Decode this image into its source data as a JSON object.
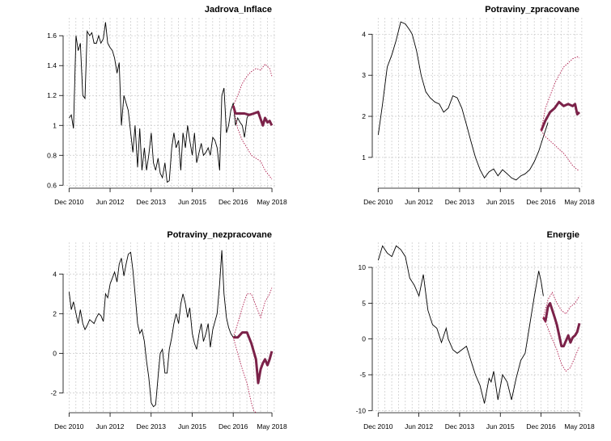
{
  "chart_data": [
    {
      "type": "line",
      "title": "Jadrova_Inflace",
      "x_tick_labels": [
        "Dec 2010",
        "Jun 2012",
        "Dec 2013",
        "Jun 2015",
        "Dec 2016",
        "May 2018"
      ],
      "x_tick_times": [
        2010.917,
        2012.417,
        2013.917,
        2015.417,
        2016.917,
        2018.333
      ],
      "xlim": [
        2010.7,
        2018.45
      ],
      "ylim": [
        0.58,
        1.72
      ],
      "y_ticks": [
        0.6,
        0.8,
        1.0,
        1.2,
        1.4,
        1.6
      ],
      "series": [
        {
          "name": "history",
          "x": [
            2010.92,
            2011.0,
            2011.08,
            2011.17,
            2011.25,
            2011.33,
            2011.42,
            2011.5,
            2011.58,
            2011.67,
            2011.75,
            2011.83,
            2011.92,
            2012.0,
            2012.08,
            2012.17,
            2012.25,
            2012.33,
            2012.42,
            2012.5,
            2012.58,
            2012.67,
            2012.75,
            2012.83,
            2012.92,
            2013.0,
            2013.08,
            2013.17,
            2013.25,
            2013.33,
            2013.42,
            2013.5,
            2013.58,
            2013.67,
            2013.75,
            2013.83,
            2013.92,
            2014.0,
            2014.08,
            2014.17,
            2014.25,
            2014.33,
            2014.42,
            2014.5,
            2014.58,
            2014.67,
            2014.75,
            2014.83,
            2014.92,
            2015.0,
            2015.08,
            2015.17,
            2015.25,
            2015.33,
            2015.42,
            2015.5,
            2015.58,
            2015.67,
            2015.75,
            2015.83,
            2015.92,
            2016.0,
            2016.08,
            2016.17,
            2016.25,
            2016.33,
            2016.42,
            2016.5,
            2016.58,
            2016.67,
            2016.75,
            2016.83,
            2016.92,
            2017.0,
            2017.08,
            2017.17,
            2017.25,
            2017.33,
            2017.42,
            2017.5
          ],
          "y": [
            1.05,
            1.07,
            0.98,
            1.6,
            1.5,
            1.55,
            1.2,
            1.18,
            1.63,
            1.6,
            1.62,
            1.55,
            1.55,
            1.6,
            1.55,
            1.58,
            1.69,
            1.55,
            1.52,
            1.5,
            1.45,
            1.35,
            1.42,
            1.0,
            1.2,
            1.15,
            1.1,
            0.95,
            0.82,
            1.0,
            0.72,
            0.98,
            0.7,
            0.85,
            0.7,
            0.8,
            0.95,
            0.75,
            0.7,
            0.78,
            0.68,
            0.65,
            0.75,
            0.62,
            0.63,
            0.85,
            0.95,
            0.85,
            0.9,
            0.7,
            0.95,
            0.85,
            1.0,
            0.9,
            0.8,
            0.95,
            0.75,
            0.82,
            0.88,
            0.8,
            0.82,
            0.85,
            0.8,
            0.92,
            0.9,
            0.85,
            0.7,
            1.2,
            1.25,
            0.95,
            1.0,
            1.1,
            1.15,
            1.0,
            1.05,
            1.02,
            1.0,
            0.92,
            1.05,
            1.08
          ],
          "style": "history"
        },
        {
          "name": "forecast",
          "x": [
            2016.92,
            2017.0,
            2017.17,
            2017.33,
            2017.5,
            2017.67,
            2017.83,
            2018.0,
            2018.08,
            2018.17,
            2018.25,
            2018.33
          ],
          "y": [
            1.13,
            1.08,
            1.08,
            1.08,
            1.07,
            1.08,
            1.09,
            1.0,
            1.05,
            1.02,
            1.03,
            1.0
          ],
          "style": "forecast"
        },
        {
          "name": "upper",
          "x": [
            2016.92,
            2017.08,
            2017.25,
            2017.42,
            2017.58,
            2017.75,
            2017.92,
            2018.08,
            2018.25,
            2018.33
          ],
          "y": [
            1.13,
            1.2,
            1.28,
            1.33,
            1.36,
            1.38,
            1.37,
            1.41,
            1.38,
            1.33
          ],
          "style": "band"
        },
        {
          "name": "lower",
          "x": [
            2016.92,
            2017.08,
            2017.25,
            2017.42,
            2017.58,
            2017.75,
            2017.92,
            2018.08,
            2018.25,
            2018.33
          ],
          "y": [
            1.13,
            0.98,
            0.9,
            0.85,
            0.8,
            0.78,
            0.76,
            0.7,
            0.66,
            0.64
          ],
          "style": "band"
        }
      ]
    },
    {
      "type": "line",
      "title": "Potraviny_zpracovane",
      "x_tick_labels": [
        "Dec 2010",
        "Jun 2012",
        "Dec 2013",
        "Jun 2015",
        "Dec 2016",
        "May 2018"
      ],
      "x_tick_times": [
        2010.917,
        2012.417,
        2013.917,
        2015.417,
        2016.917,
        2018.333
      ],
      "xlim": [
        2010.7,
        2018.45
      ],
      "ylim": [
        0.25,
        4.4
      ],
      "y_ticks": [
        1,
        2,
        3,
        4
      ],
      "series": [
        {
          "name": "history",
          "x": [
            2010.92,
            2011.08,
            2011.25,
            2011.42,
            2011.58,
            2011.75,
            2011.92,
            2012.08,
            2012.17,
            2012.33,
            2012.5,
            2012.67,
            2012.83,
            2013.0,
            2013.17,
            2013.33,
            2013.5,
            2013.67,
            2013.83,
            2014.0,
            2014.17,
            2014.33,
            2014.5,
            2014.67,
            2014.83,
            2015.0,
            2015.17,
            2015.33,
            2015.5,
            2015.67,
            2015.83,
            2016.0,
            2016.17,
            2016.33,
            2016.5,
            2016.67,
            2016.83,
            2017.0,
            2017.17
          ],
          "y": [
            1.55,
            2.3,
            3.2,
            3.5,
            3.85,
            4.3,
            4.25,
            4.1,
            4.0,
            3.6,
            3.0,
            2.6,
            2.45,
            2.35,
            2.3,
            2.1,
            2.2,
            2.5,
            2.45,
            2.2,
            1.8,
            1.4,
            1.0,
            0.7,
            0.5,
            0.65,
            0.72,
            0.55,
            0.7,
            0.6,
            0.5,
            0.45,
            0.55,
            0.6,
            0.7,
            0.9,
            1.15,
            1.5,
            1.85
          ],
          "style": "history"
        },
        {
          "name": "forecast",
          "x": [
            2016.92,
            2017.08,
            2017.25,
            2017.42,
            2017.58,
            2017.75,
            2017.92,
            2018.08,
            2018.17,
            2018.25,
            2018.33
          ],
          "y": [
            1.65,
            1.9,
            2.1,
            2.2,
            2.35,
            2.25,
            2.3,
            2.25,
            2.3,
            2.05,
            2.1
          ],
          "style": "forecast"
        },
        {
          "name": "upper",
          "x": [
            2016.92,
            2017.08,
            2017.25,
            2017.42,
            2017.58,
            2017.75,
            2017.92,
            2018.08,
            2018.25,
            2018.33
          ],
          "y": [
            1.65,
            2.2,
            2.5,
            2.8,
            3.0,
            3.2,
            3.3,
            3.4,
            3.45,
            3.42
          ],
          "style": "band"
        },
        {
          "name": "lower",
          "x": [
            2016.92,
            2017.08,
            2017.25,
            2017.42,
            2017.58,
            2017.75,
            2017.92,
            2018.08,
            2018.25,
            2018.33
          ],
          "y": [
            1.65,
            1.5,
            1.4,
            1.3,
            1.2,
            1.1,
            0.95,
            0.8,
            0.7,
            0.68
          ],
          "style": "band"
        }
      ]
    },
    {
      "type": "line",
      "title": "Potraviny_nezpracovane",
      "x_tick_labels": [
        "Dec 2010",
        "Jun 2012",
        "Dec 2013",
        "Jun 2015",
        "Dec 2016",
        "May 2018"
      ],
      "x_tick_times": [
        2010.917,
        2012.417,
        2013.917,
        2015.417,
        2016.917,
        2018.333
      ],
      "xlim": [
        2010.7,
        2018.45
      ],
      "ylim": [
        -3.0,
        5.6
      ],
      "y_ticks": [
        -2,
        0,
        2,
        4
      ],
      "series": [
        {
          "name": "history",
          "x": [
            2010.92,
            2011.0,
            2011.08,
            2011.17,
            2011.25,
            2011.33,
            2011.42,
            2011.5,
            2011.58,
            2011.67,
            2011.75,
            2011.83,
            2011.92,
            2012.0,
            2012.08,
            2012.17,
            2012.25,
            2012.33,
            2012.42,
            2012.5,
            2012.58,
            2012.67,
            2012.75,
            2012.83,
            2012.92,
            2013.0,
            2013.08,
            2013.17,
            2013.25,
            2013.33,
            2013.42,
            2013.5,
            2013.58,
            2013.67,
            2013.75,
            2013.83,
            2013.92,
            2014.0,
            2014.08,
            2014.17,
            2014.25,
            2014.33,
            2014.42,
            2014.5,
            2014.58,
            2014.67,
            2014.75,
            2014.83,
            2014.92,
            2015.0,
            2015.08,
            2015.17,
            2015.25,
            2015.33,
            2015.42,
            2015.5,
            2015.58,
            2015.67,
            2015.75,
            2015.83,
            2015.92,
            2016.0,
            2016.08,
            2016.17,
            2016.25,
            2016.33,
            2016.42,
            2016.5,
            2016.58,
            2016.67,
            2016.75,
            2016.83,
            2016.92,
            2017.0
          ],
          "y": [
            3.1,
            2.2,
            2.6,
            2.0,
            1.5,
            2.2,
            1.5,
            1.2,
            1.4,
            1.7,
            1.6,
            1.5,
            1.8,
            2.0,
            1.9,
            1.6,
            3.0,
            2.8,
            3.5,
            3.8,
            4.1,
            3.6,
            4.5,
            4.8,
            3.9,
            4.5,
            5.0,
            5.1,
            4.2,
            3.0,
            1.5,
            1.0,
            1.2,
            0.6,
            -0.4,
            -1.2,
            -2.5,
            -2.7,
            -2.6,
            -1.2,
            0.0,
            0.2,
            -1.0,
            -1.0,
            0.2,
            0.8,
            1.5,
            2.0,
            1.5,
            2.5,
            3.0,
            2.5,
            1.8,
            2.3,
            1.0,
            0.5,
            0.2,
            1.0,
            1.5,
            0.6,
            1.0,
            1.5,
            0.3,
            1.2,
            1.6,
            2.0,
            3.5,
            5.2,
            3.0,
            1.8,
            1.3,
            1.0,
            0.8,
            0.9
          ],
          "style": "history"
        },
        {
          "name": "forecast",
          "x": [
            2016.92,
            2017.08,
            2017.25,
            2017.42,
            2017.58,
            2017.75,
            2017.83,
            2017.92,
            2018.0,
            2018.08,
            2018.17,
            2018.25,
            2018.33
          ],
          "y": [
            0.8,
            0.8,
            1.05,
            1.05,
            0.5,
            -0.3,
            -1.5,
            -0.8,
            -0.5,
            -0.3,
            -0.6,
            -0.3,
            0.1
          ],
          "style": "forecast"
        },
        {
          "name": "upper",
          "x": [
            2016.92,
            2017.08,
            2017.25,
            2017.42,
            2017.58,
            2017.75,
            2017.92,
            2018.08,
            2018.25,
            2018.33
          ],
          "y": [
            0.8,
            1.5,
            2.3,
            3.0,
            3.0,
            2.4,
            1.8,
            2.6,
            3.0,
            3.3
          ],
          "style": "band"
        },
        {
          "name": "lower",
          "x": [
            2016.92,
            2017.08,
            2017.25,
            2017.42,
            2017.58,
            2017.67,
            2017.75
          ],
          "y": [
            0.8,
            0.0,
            -0.8,
            -1.5,
            -2.5,
            -2.9,
            -3.0
          ],
          "style": "band"
        }
      ]
    },
    {
      "type": "line",
      "title": "Energie",
      "x_tick_labels": [
        "Dec 2010",
        "Jun 2012",
        "Dec 2013",
        "Jun 2015",
        "Dec 2016",
        "May 2018"
      ],
      "x_tick_times": [
        2010.917,
        2012.417,
        2013.917,
        2015.417,
        2016.917,
        2018.333
      ],
      "xlim": [
        2010.7,
        2018.45
      ],
      "ylim": [
        -10.3,
        13.5
      ],
      "y_ticks": [
        -10,
        -5,
        0,
        5,
        10
      ],
      "series": [
        {
          "name": "history",
          "x": [
            2010.92,
            2011.08,
            2011.25,
            2011.42,
            2011.58,
            2011.75,
            2011.92,
            2012.08,
            2012.25,
            2012.42,
            2012.58,
            2012.75,
            2012.92,
            2013.08,
            2013.25,
            2013.42,
            2013.5,
            2013.67,
            2013.83,
            2014.0,
            2014.17,
            2014.33,
            2014.5,
            2014.67,
            2014.83,
            2015.0,
            2015.08,
            2015.17,
            2015.33,
            2015.5,
            2015.67,
            2015.83,
            2016.0,
            2016.17,
            2016.33,
            2016.5,
            2016.67,
            2016.83,
            2016.92,
            2017.0
          ],
          "y": [
            11.0,
            13.0,
            12.0,
            11.5,
            13.0,
            12.5,
            11.5,
            8.5,
            7.5,
            6.0,
            9.0,
            4.0,
            2.0,
            1.5,
            -0.5,
            1.5,
            0.0,
            -1.5,
            -2.0,
            -1.5,
            -1.0,
            -3.0,
            -5.0,
            -6.5,
            -9.0,
            -5.5,
            -6.0,
            -4.5,
            -8.5,
            -5.0,
            -6.0,
            -8.5,
            -5.5,
            -3.0,
            -2.0,
            2.0,
            6.0,
            9.5,
            8.0,
            6.0
          ],
          "style": "history"
        },
        {
          "name": "forecast",
          "x": [
            2017.0,
            2017.08,
            2017.17,
            2017.25,
            2017.42,
            2017.5,
            2017.67,
            2017.75,
            2017.92,
            2018.0,
            2018.08,
            2018.17,
            2018.25,
            2018.33
          ],
          "y": [
            3.0,
            2.5,
            4.5,
            5.0,
            3.0,
            2.0,
            -1.0,
            -1.0,
            0.5,
            -0.5,
            0.2,
            0.5,
            1.0,
            2.2
          ],
          "style": "forecast"
        },
        {
          "name": "upper",
          "x": [
            2017.0,
            2017.17,
            2017.33,
            2017.5,
            2017.67,
            2017.83,
            2018.0,
            2018.17,
            2018.33
          ],
          "y": [
            3.0,
            5.5,
            6.5,
            5.0,
            4.0,
            3.5,
            4.5,
            5.0,
            6.0
          ],
          "style": "band"
        },
        {
          "name": "lower",
          "x": [
            2017.0,
            2017.17,
            2017.33,
            2017.5,
            2017.67,
            2017.83,
            2018.0,
            2018.17,
            2018.33
          ],
          "y": [
            3.0,
            1.5,
            0.0,
            -1.5,
            -3.5,
            -4.5,
            -4.0,
            -2.5,
            -1.0
          ],
          "style": "band"
        }
      ]
    }
  ]
}
